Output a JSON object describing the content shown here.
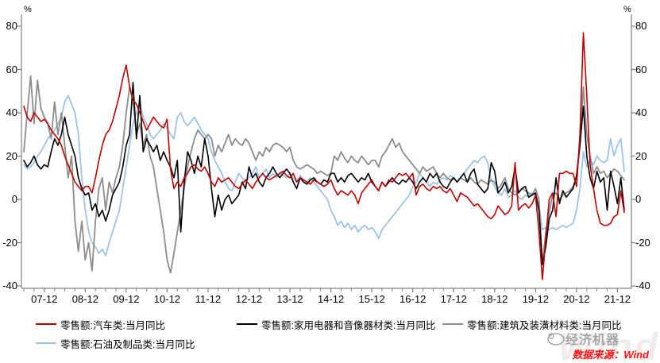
{
  "page": {
    "background": "#ffffff"
  },
  "chart_data": {
    "type": "line",
    "title": "",
    "y_unit": "%",
    "ylim": [
      -40,
      80
    ],
    "y_ticks": [
      "80",
      "60",
      "40",
      "20",
      "0",
      "-20",
      "-40"
    ],
    "grid": false,
    "legend_position": "bottom",
    "axis_color": "#808080",
    "x_start": "2007-06",
    "x_end": "2022-02",
    "x_interval": "monthly",
    "x_tick_labels": [
      "07-12",
      "08-12",
      "09-12",
      "10-12",
      "11-12",
      "12-12",
      "13-12",
      "14-12",
      "15-12",
      "16-12",
      "17-12",
      "18-12",
      "19-12",
      "20-12",
      "21-12"
    ],
    "x_tick_first_index": 6,
    "x_tick_step_months": 12,
    "x_minor_tick_step_months": 3,
    "series": [
      {
        "name": "零售额:汽车类:当月同比",
        "color": "#C00000",
        "values": [
          43,
          38,
          36,
          40,
          38,
          36,
          37,
          35,
          32,
          30,
          28,
          25,
          20,
          16,
          12,
          8,
          6,
          4,
          6,
          6,
          3,
          10,
          18,
          25,
          30,
          32,
          36,
          42,
          48,
          56,
          62,
          52,
          46,
          44,
          40,
          36,
          32,
          35,
          38,
          36,
          34,
          33,
          37,
          14,
          5,
          8,
          6,
          10,
          12,
          15,
          16,
          14,
          13,
          15,
          12,
          8,
          6,
          10,
          8,
          9,
          10,
          8,
          6,
          5,
          7,
          9,
          7,
          5,
          8,
          10,
          12,
          10,
          9,
          10,
          11,
          12,
          13,
          11,
          10,
          12,
          8,
          10,
          9,
          8,
          7,
          9,
          8,
          7,
          6,
          7,
          9,
          5,
          2,
          4,
          3,
          2,
          4,
          2,
          -2,
          3,
          5,
          7,
          9,
          6,
          4,
          8,
          6,
          9,
          8,
          10,
          12,
          11,
          12,
          10,
          12,
          2,
          6,
          7,
          5,
          4,
          6,
          5,
          6,
          4,
          3,
          5,
          2,
          -1,
          3,
          2,
          1,
          -1,
          -3,
          -2,
          -4,
          -6,
          -8,
          -9,
          -7,
          -3,
          -5,
          -7,
          -6,
          -3,
          17,
          -5,
          -3,
          -2,
          -4,
          -2,
          2,
          -15,
          -37,
          -18,
          0,
          3,
          -8,
          12,
          12,
          13,
          12,
          12,
          6,
          30,
          77,
          48,
          16,
          5,
          -5,
          -11,
          -12,
          -12,
          -11,
          -8,
          -7,
          4,
          -6
        ]
      },
      {
        "name": "零售额:家用电器和音像器材类:当月同比",
        "color": "#000000",
        "values": [
          18,
          15,
          17,
          20,
          16,
          14,
          16,
          15,
          22,
          28,
          25,
          30,
          38,
          30,
          25,
          20,
          10,
          5,
          2,
          3,
          -5,
          -2,
          -8,
          -5,
          -10,
          -5,
          2,
          5,
          8,
          15,
          25,
          30,
          54,
          28,
          48,
          22,
          28,
          25,
          22,
          25,
          18,
          22,
          18,
          15,
          10,
          18,
          -15,
          8,
          22,
          18,
          12,
          20,
          15,
          28,
          20,
          5,
          -8,
          2,
          -5,
          0,
          2,
          -2,
          0,
          2,
          8,
          5,
          15,
          10,
          12,
          8,
          6,
          10,
          12,
          15,
          12,
          10,
          12,
          14,
          12,
          8,
          5,
          10,
          8,
          7,
          9,
          10,
          8,
          7,
          9,
          8,
          12,
          12,
          8,
          10,
          8,
          11,
          12,
          10,
          8,
          10,
          9,
          12,
          8,
          6,
          4,
          8,
          6,
          8,
          10,
          8,
          7,
          9,
          8,
          10,
          8,
          5,
          8,
          10,
          8,
          12,
          10,
          12,
          8,
          6,
          5,
          8,
          10,
          8,
          10,
          12,
          8,
          12,
          14,
          7,
          5,
          3,
          5,
          17,
          13,
          3,
          5,
          8,
          3,
          6,
          15,
          3,
          5,
          6,
          1,
          2,
          3,
          -5,
          -30,
          -22,
          -9,
          -5,
          10,
          -2,
          4,
          1,
          3,
          5,
          11,
          25,
          43,
          20,
          10,
          5,
          13,
          8,
          10,
          -5,
          13,
          6,
          -2,
          10,
          -5
        ]
      },
      {
        "name": "零售额:建筑及装潢材料类:当月同比",
        "color": "#8C8C8C",
        "values": [
          22,
          40,
          57,
          35,
          55,
          42,
          38,
          35,
          28,
          45,
          30,
          40,
          25,
          10,
          20,
          -10,
          -24,
          -10,
          -28,
          -20,
          -33,
          -10,
          5,
          10,
          -5,
          8,
          3,
          10,
          15,
          25,
          40,
          52,
          45,
          30,
          35,
          25,
          30,
          20,
          15,
          5,
          -5,
          -15,
          -28,
          -34,
          -25,
          -15,
          -5,
          5,
          15,
          22,
          28,
          32,
          30,
          28,
          30,
          28,
          20,
          25,
          22,
          26,
          30,
          25,
          28,
          26,
          25,
          28,
          26,
          22,
          18,
          22,
          20,
          24,
          22,
          25,
          26,
          25,
          24,
          22,
          24,
          18,
          15,
          14,
          15,
          16,
          15,
          14,
          12,
          13,
          12,
          11,
          12,
          20,
          18,
          22,
          19,
          17,
          20,
          18,
          17,
          20,
          18,
          16,
          18,
          18,
          15,
          20,
          22,
          25,
          28,
          24,
          26,
          22,
          20,
          18,
          16,
          14,
          12,
          15,
          13,
          14,
          15,
          12,
          10,
          12,
          10,
          9,
          10,
          8,
          10,
          9,
          8,
          10,
          8,
          7,
          9,
          8,
          7,
          9,
          8,
          5,
          7,
          10,
          5,
          3,
          2,
          3,
          5,
          4,
          3,
          2,
          5,
          0,
          -30,
          -15,
          -6,
          2,
          3,
          0,
          2,
          3,
          4,
          6,
          10,
          25,
          52,
          30,
          20,
          12,
          15,
          12,
          13,
          10,
          12,
          14,
          13,
          11,
          9
        ]
      },
      {
        "name": "零售额:石油及制品类:当月同比",
        "color": "#9DC3E6",
        "values": [
          16,
          14,
          15,
          17,
          20,
          22,
          25,
          28,
          30,
          32,
          35,
          38,
          45,
          48,
          44,
          40,
          30,
          10,
          -5,
          -15,
          -20,
          -22,
          -25,
          -23,
          -26,
          -20,
          -15,
          -10,
          -5,
          5,
          15,
          25,
          35,
          40,
          44,
          38,
          35,
          30,
          28,
          30,
          32,
          35,
          33,
          30,
          28,
          38,
          40,
          36,
          34,
          36,
          38,
          35,
          32,
          30,
          28,
          22,
          18,
          15,
          12,
          8,
          5,
          4,
          8,
          12,
          10,
          8,
          10,
          12,
          15,
          10,
          12,
          14,
          10,
          12,
          10,
          12,
          11,
          10,
          12,
          10,
          8,
          11,
          9,
          8,
          10,
          8,
          6,
          4,
          2,
          0,
          -5,
          -8,
          -12,
          -10,
          -13,
          -11,
          -14,
          -12,
          -15,
          -13,
          -12,
          -14,
          -13,
          -15,
          -18,
          -14,
          -12,
          -10,
          -8,
          -6,
          -4,
          -2,
          0,
          2,
          6,
          8,
          12,
          10,
          8,
          6,
          8,
          7,
          9,
          10,
          9,
          11,
          10,
          8,
          10,
          12,
          14,
          16,
          18,
          17,
          19,
          20,
          17,
          9,
          6,
          3,
          2,
          5,
          1,
          2,
          4,
          1,
          0,
          2,
          1,
          3,
          2,
          -3,
          -14,
          -13,
          -14,
          -13,
          -14,
          -13,
          -12,
          -13,
          -12,
          -11,
          -5,
          5,
          22,
          15,
          18,
          16,
          20,
          18,
          17,
          18,
          28,
          20,
          25,
          28,
          13
        ]
      }
    ]
  },
  "legend": {
    "items": [
      {
        "label": "零售额:汽车类:当月同比"
      },
      {
        "label": "零售额:家用电器和音像器材类:当月同比"
      },
      {
        "label": "零售额:建筑及装潢材料类:当月同比"
      },
      {
        "label": "零售额:石油及制品类:当月同比"
      }
    ]
  },
  "footer": {
    "brand_name": "经济机器",
    "source_label": "数据来源：Wind",
    "watermark": "Wind",
    "source_color": "#FF1111",
    "brand_color": "#A3A3A3",
    "watermark_color": "#F1ECEC"
  }
}
